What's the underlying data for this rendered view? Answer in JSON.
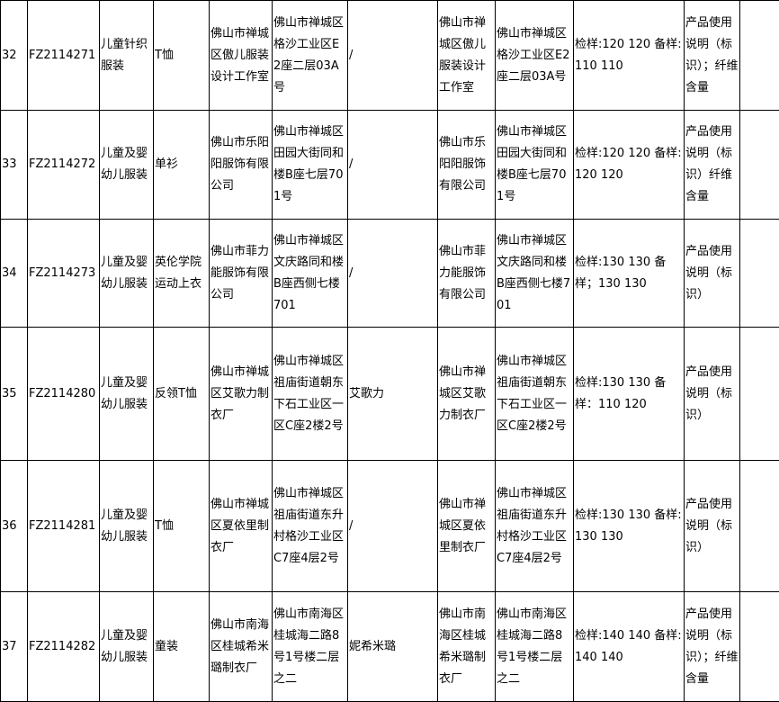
{
  "table": {
    "rows": [
      [
        "32",
        "FZ2114271",
        "儿童针织服装",
        "T恤",
        "佛山市禅城区傲儿服装设计工作室",
        "佛山市禅城区格沙工业区E2座二层03A号",
        "/",
        "佛山市禅城区傲儿服装设计工作室",
        "佛山市禅城区格沙工业区E2座二层03A号",
        "检样:120 120 备样:110 110",
        "产品使用说明（标识）；纤维含量"
      ],
      [
        "33",
        "FZ2114272",
        "儿童及婴幼儿服装",
        "单衫",
        "佛山市乐阳阳服饰有限公司",
        "佛山市禅城区田园大街同和楼B座七层701号",
        "/",
        "佛山市乐阳阳服饰有限公司",
        "佛山市禅城区田园大街同和楼B座七层701号",
        "检样:120 120 备样:120 120",
        "产品使用说明（标识）纤维含量"
      ],
      [
        "34",
        "FZ2114273",
        "儿童及婴幼儿服装",
        "英伦学院运动上衣",
        "佛山市菲力能服饰有限公司",
        "佛山市禅城区文庆路同和楼B座西侧七楼701",
        "/",
        "佛山市菲力能服饰有限公司",
        "佛山市禅城区文庆路同和楼B座西侧七楼701",
        "检样:130 130 备样；130 130",
        "产品使用说明（标识）"
      ],
      [
        "35",
        "FZ2114280",
        "儿童及婴幼儿服装",
        "反领T恤",
        "佛山市禅城区艾歌力制衣厂",
        "佛山市禅城区祖庙街道朝东下石工业区一区C座2楼2号",
        "艾歌力",
        "佛山市禅城区艾歌力制衣厂",
        "佛山市禅城区祖庙街道朝东下石工业区一区C座2楼2号",
        "检样:130 130 备样：110 120",
        "产品使用说明（标识）"
      ],
      [
        "36",
        "FZ2114281",
        "儿童及婴幼儿服装",
        "T恤",
        "佛山市禅城区夏依里制衣厂",
        "佛山市禅城区祖庙街道东升村格沙工业区C7座4层2号",
        "/",
        "佛山市禅城区夏依里制衣厂",
        "佛山市禅城区祖庙街道东升村格沙工业区C7座4层2号",
        "检样:130 130 备样:130 130",
        "产品使用说明（标识）"
      ],
      [
        "37",
        "FZ2114282",
        "儿童及婴幼儿服装",
        "童装",
        "佛山市南海区桂城希米璐制衣厂",
        "佛山市南海区桂城海二路8号1号楼二层之二",
        "妮希米璐",
        "佛山市南海区桂城希米璐制衣厂",
        "佛山市南海区桂城海二路8号1号楼二层之二",
        "检样:140 140 备样:140 140",
        "产品使用说明（标识）；纤维含量"
      ]
    ]
  }
}
